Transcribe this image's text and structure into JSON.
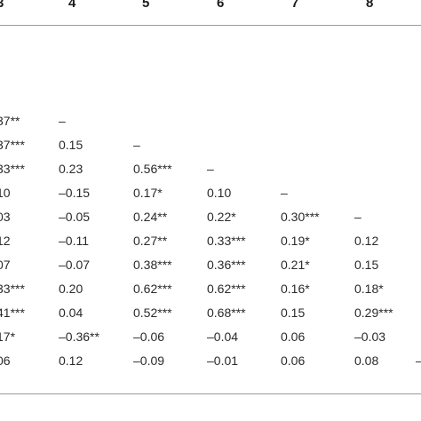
{
  "header": [
    "3",
    "4",
    "5",
    "6",
    "7",
    "8"
  ],
  "rows": [
    [
      "37**",
      "–",
      "",
      "",
      "",
      "",
      ""
    ],
    [
      "37***",
      "0.15",
      "–",
      "",
      "",
      "",
      ""
    ],
    [
      "33***",
      "0.23",
      "0.56***",
      "–",
      "",
      "",
      ""
    ],
    [
      "10",
      "–0.15",
      "0.17*",
      "0.10",
      "–",
      "",
      ""
    ],
    [
      "03",
      "–0.05",
      "0.24**",
      "0.22*",
      "0.30***",
      "–",
      ""
    ],
    [
      "12",
      "–0.11",
      "0.27**",
      "0.33***",
      "0.19*",
      "0.12",
      ""
    ],
    [
      "07",
      "–0.07",
      "0.38***",
      "0.36***",
      "0.21*",
      "0.15",
      ""
    ],
    [
      "33***",
      "0.20",
      "0.62***",
      "0.62***",
      "0.16*",
      "0.18*",
      ""
    ],
    [
      "41***",
      "0.04",
      "0.52***",
      "0.68***",
      "0.15",
      "0.29***",
      ""
    ],
    [
      "17*",
      "–0.36**",
      "–0.06",
      "–0.04",
      "0.06",
      "–0.03",
      ""
    ],
    [
      "06",
      "0.12",
      "–0.09",
      "–0.01",
      "0.06",
      "0.08",
      "–"
    ]
  ]
}
